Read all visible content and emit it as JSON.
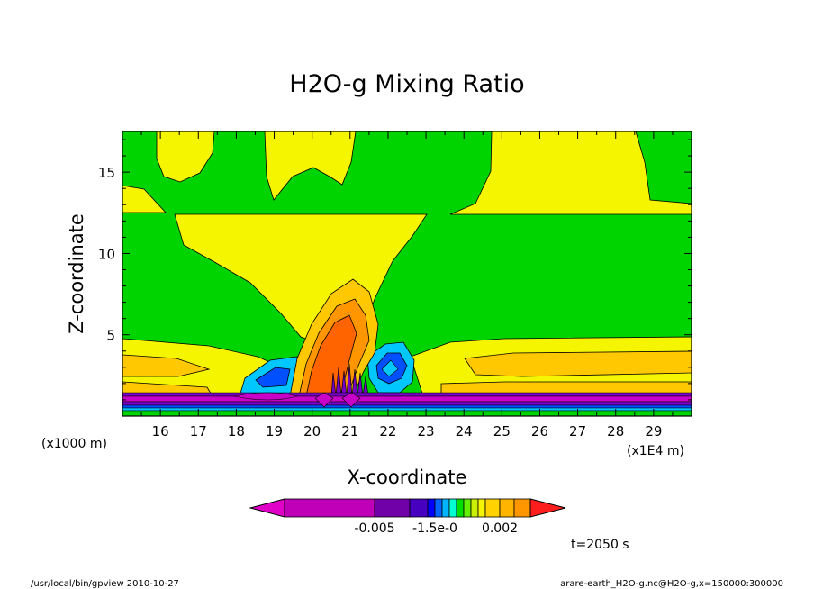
{
  "chart_data": {
    "type": "heatmap",
    "title": "H2O-g Mixing Ratio",
    "xlabel": "X-coordinate",
    "ylabel": "Z-coordinate",
    "x_unit_label": "(x1E4 m)",
    "y_unit_label": "(x1000 m)",
    "x_ticks": [
      "16",
      "17",
      "18",
      "19",
      "20",
      "21",
      "22",
      "23",
      "24",
      "25",
      "26",
      "27",
      "28",
      "29"
    ],
    "y_ticks": [
      "5",
      "10",
      "15"
    ],
    "xlim": [
      15,
      30
    ],
    "ylim": [
      0,
      17.5
    ],
    "colorbar_labels": [
      "-0.005",
      "-1.5e-0",
      "0.002"
    ],
    "time_label": "t=2050 s",
    "footer_left": "/usr/local/bin/gpview  2010-10-27",
    "footer_right": "arare-earth_H2O-g.nc@H2O-g,x=150000:300000",
    "colors": {
      "background_field": "#00d400",
      "yellow": "#f5f500",
      "light_orange": "#ffc800",
      "orange": "#ff9600",
      "deep_orange": "#ff6400",
      "cyan": "#00c8ff",
      "blue": "#0050ff",
      "purple": "#7800c8",
      "magenta": "#c800c8"
    }
  }
}
